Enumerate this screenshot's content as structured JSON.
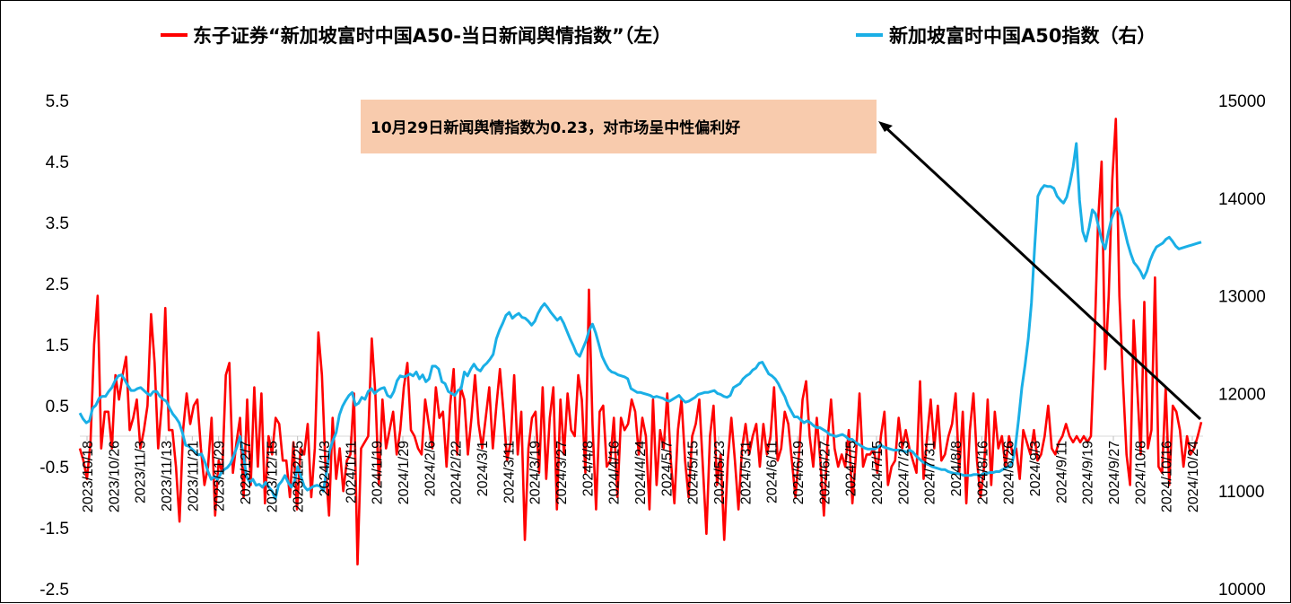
{
  "chart_data": {
    "type": "line",
    "legend": [
      {
        "label": "东子证券“新加坡富时中国A50-当日新闻舆情指数”（左）",
        "color": "#FF0000"
      },
      {
        "label": "新加坡富时中国A50指数（右）",
        "color": "#1AAFE6"
      }
    ],
    "legend_position": "top",
    "grid": false,
    "y_left": {
      "min": -2.5,
      "max": 5.5,
      "ticks": [
        "5.5",
        "4.5",
        "3.5",
        "2.5",
        "1.5",
        "0.5",
        "-0.5",
        "-1.5",
        "-2.5"
      ]
    },
    "y_right": {
      "min": 10000,
      "max": 15000,
      "ticks": [
        "15000",
        "14000",
        "13000",
        "12000",
        "11000",
        "10000"
      ]
    },
    "x_tick_labels": [
      "2023/10/18",
      "2023/10/26",
      "2023/11/3",
      "2023/11/13",
      "2023/11/21",
      "2023/11/29",
      "2023/12/7",
      "2023/12/15",
      "2023/12/25",
      "2024/1/3",
      "2024/1/11",
      "2024/1/19",
      "2024/1/29",
      "2024/2/6",
      "2024/2/22",
      "2024/3/1",
      "2024/3/11",
      "2024/3/19",
      "2024/3/27",
      "2024/4/8",
      "2024/4/16",
      "2024/4/24",
      "2024/5/7",
      "2024/5/15",
      "2024/5/23",
      "2024/5/31",
      "2024/6/11",
      "2024/6/19",
      "2024/6/27",
      "2024/7/5",
      "2024/7/15",
      "2024/7/23",
      "2024/7/31",
      "2024/8/8",
      "2024/8/16",
      "2024/8/26",
      "2024/9/3",
      "2024/9/11",
      "2024/9/19",
      "2024/9/27",
      "2024/10/8",
      "2024/10/16",
      "2024/10/24"
    ],
    "series": [
      {
        "name": "东子证券“新加坡富时中国A50-当日新闻舆情指数”（左）",
        "axis": "left",
        "color": "#FF0000",
        "values": [
          -0.2,
          -0.4,
          -0.7,
          -0.1,
          1.5,
          2.3,
          -0.2,
          0.4,
          0.4,
          -0.2,
          1.0,
          0.6,
          1.0,
          1.3,
          0.1,
          0.3,
          0.6,
          -0.2,
          0.1,
          0.5,
          2.0,
          1.2,
          -0.2,
          0.5,
          2.1,
          0.1,
          0.1,
          -0.5,
          -1.4,
          0.1,
          0.7,
          0.2,
          0.5,
          0.6,
          -0.2,
          -0.8,
          -0.5,
          0.3,
          -1.3,
          -0.4,
          -0.6,
          1.0,
          1.2,
          -0.6,
          -0.1,
          0.3,
          -1.0,
          0.6,
          -0.8,
          0.8,
          -0.5,
          0.7,
          -1.1,
          0.0,
          -0.3,
          0.3,
          0.2,
          -0.4,
          -0.4,
          -1.0,
          -0.1,
          -1.2,
          -0.2,
          -0.3,
          0.2,
          -1.0,
          -0.2,
          1.7,
          1.0,
          -0.5,
          -1.3,
          0.3,
          -0.7,
          -0.2,
          -0.9,
          -0.4,
          -0.3,
          0.7,
          -2.1,
          -0.2,
          -0.1,
          0.0,
          1.6,
          0.7,
          -0.8,
          0.6,
          -0.2,
          0.1,
          0.4,
          -0.3,
          0.1,
          0.8,
          1.2,
          0.1,
          0.0,
          -0.2,
          -0.3,
          0.6,
          0.2,
          -0.2,
          0.8,
          0.3,
          0.4,
          -0.5,
          0.5,
          1.1,
          -0.3,
          0.8,
          0.6,
          -0.3,
          0.3,
          1.0,
          0.2,
          -0.2,
          0.3,
          0.8,
          -0.2,
          0.5,
          1.1,
          0.4,
          -0.4,
          -0.1,
          1.0,
          -0.3,
          0.4,
          -1.7,
          -0.2,
          0.3,
          0.4,
          -0.6,
          0.8,
          -0.7,
          0.3,
          0.8,
          -1.2,
          0.6,
          -0.3,
          0.7,
          0.1,
          0.0,
          1.0,
          0.6,
          -0.6,
          2.4,
          0.2,
          -1.2,
          0.4,
          0.5,
          -0.5,
          -0.4,
          0.3,
          -1.0,
          0.3,
          0.1,
          0.2,
          0.6,
          0.4,
          -0.3,
          0.3,
          0.0,
          -1.2,
          0.6,
          -0.8,
          0.1,
          -0.2,
          0.7,
          -0.4,
          -1.1,
          0.1,
          0.6,
          -0.4,
          -1.0,
          0.0,
          0.2,
          0.6,
          -0.5,
          -1.6,
          0.0,
          0.5,
          -0.8,
          -0.3,
          -1.7,
          -0.4,
          0.3,
          -0.4,
          -1.2,
          -0.2,
          0.2,
          -0.3,
          0.0,
          0.2,
          -0.5,
          0.2,
          -0.3,
          0.0,
          0.8,
          -0.4,
          -0.2,
          0.4,
          0.2,
          -0.4,
          -1.0,
          -0.3,
          0.6,
          0.9,
          0.0,
          -0.5,
          0.3,
          -0.4,
          -1.3,
          -0.1,
          0.6,
          -0.2,
          -0.5,
          -0.3,
          -0.5,
          0.1,
          -1.1,
          -0.3,
          0.7,
          -0.5,
          -0.3,
          -0.3,
          -0.2,
          -0.6,
          0.0,
          0.4,
          -0.8,
          -0.5,
          -0.4,
          0.3,
          -0.2,
          0.1,
          -0.2,
          -0.4,
          -0.6,
          0.9,
          -0.7,
          0.0,
          0.6,
          -0.2,
          0.5,
          -0.4,
          -0.3,
          0.0,
          0.2,
          0.7,
          -0.6,
          0.4,
          -1.1,
          0.1,
          0.7,
          -0.4,
          -1.0,
          -0.5,
          0.6,
          -0.8,
          0.4,
          -0.2,
          0.0,
          -0.5,
          0.0,
          -0.3,
          -0.2,
          -0.7,
          0.1,
          -0.1,
          -0.3,
          0.1,
          -0.4,
          -0.3,
          0.0,
          0.5,
          -0.2,
          -0.3,
          -0.1,
          0.0,
          0.2,
          0.0,
          -0.1,
          0.0,
          -0.1,
          0.0,
          -0.1,
          0.0,
          1.5,
          3.5,
          4.5,
          1.1,
          2.3,
          4.2,
          5.2,
          2.3,
          0.9,
          -0.3,
          -0.8,
          1.9,
          0.8,
          -0.3,
          2.2,
          -0.2,
          0.1,
          2.6,
          -0.5,
          -0.6,
          0.8,
          -0.8,
          0.5,
          0.4,
          0.1,
          -0.5,
          0.0,
          -0.3,
          -0.2,
          0.0,
          0.23
        ]
      },
      {
        "name": "新加坡富时中国A50指数（右）",
        "axis": "right",
        "color": "#1AAFE6",
        "values": [
          11800,
          11740,
          11700,
          11720,
          11850,
          11880,
          11950,
          11970,
          11970,
          12020,
          12060,
          12130,
          12180,
          12190,
          12140,
          12080,
          12030,
          12030,
          12050,
          12060,
          12030,
          12000,
          11980,
          12020,
          12020,
          11970,
          11940,
          11920,
          11850,
          11790,
          11750,
          11700,
          11600,
          11470,
          11460,
          11430,
          11400,
          11370,
          11380,
          11300,
          11200,
          11120,
          11150,
          11120,
          11180,
          11220,
          11240,
          11280,
          11360,
          11450,
          11560,
          11380,
          11150,
          11090,
          11120,
          11060,
          11070,
          11040,
          11090,
          11040,
          11000,
          10920,
          11060,
          11100,
          11160,
          11090,
          11040,
          11100,
          11250,
          11150,
          11050,
          11010,
          11030,
          11050,
          11060,
          11050,
          11000,
          11200,
          11420,
          11520,
          11600,
          11780,
          11870,
          11930,
          11980,
          12010,
          11880,
          11900,
          11960,
          11940,
          12020,
          12050,
          12000,
          12030,
          12050,
          12060,
          11980,
          11960,
          12020,
          12130,
          12180,
          12170,
          12180,
          12200,
          12180,
          12220,
          12150,
          12190,
          12120,
          12150,
          12280,
          12280,
          12250,
          12120,
          12100,
          12020,
          12000,
          11980,
          12030,
          12050,
          12220,
          12180,
          12250,
          12300,
          12250,
          12230,
          12280,
          12310,
          12350,
          12400,
          12560,
          12650,
          12720,
          12800,
          12830,
          12770,
          12800,
          12820,
          12780,
          12770,
          12740,
          12700,
          12740,
          12820,
          12880,
          12920,
          12880,
          12830,
          12790,
          12750,
          12780,
          12720,
          12640,
          12560,
          12490,
          12410,
          12380,
          12460,
          12540,
          12650,
          12710,
          12620,
          12500,
          12380,
          12310,
          12250,
          12220,
          12210,
          12190,
          12180,
          12170,
          12150,
          12050,
          12030,
          12010,
          12010,
          12000,
          11990,
          11980,
          11960,
          11970,
          11960,
          11950,
          11930,
          11920,
          11940,
          11960,
          11980,
          11940,
          11910,
          11920,
          11940,
          11960,
          11990,
          12000,
          12010,
          12010,
          12020,
          12030,
          12000,
          11990,
          11970,
          11960,
          11980,
          12060,
          12080,
          12100,
          12150,
          12180,
          12200,
          12240,
          12260,
          12310,
          12320,
          12260,
          12200,
          12180,
          12150,
          12100,
          12030,
          11970,
          11880,
          11820,
          11760,
          11760,
          11730,
          11700,
          11720,
          11700,
          11670,
          11650,
          11650,
          11630,
          11610,
          11580,
          11570,
          11560,
          11570,
          11580,
          11560,
          11530,
          11530,
          11500,
          11480,
          11460,
          11440,
          11430,
          11430,
          11430,
          11450,
          11470,
          11450,
          11440,
          11430,
          11420,
          11420,
          11420,
          11410,
          11400,
          11420,
          11400,
          11360,
          11330,
          11300,
          11280,
          11270,
          11250,
          11240,
          11230,
          11220,
          11220,
          11200,
          11190,
          11180,
          11180,
          11170,
          11160,
          11160,
          11160,
          11170,
          11170,
          11160,
          11180,
          11180,
          11190,
          11190,
          11200,
          11200,
          11220,
          11240,
          11250,
          11290,
          11460,
          11740,
          12060,
          12290,
          12560,
          12930,
          13500,
          14020,
          14090,
          14130,
          14120,
          14120,
          14100,
          14020,
          13980,
          13950,
          14010,
          14150,
          14320,
          14560,
          13980,
          13660,
          13560,
          13700,
          13880,
          13840,
          13700,
          13560,
          13480,
          13650,
          13790,
          13870,
          13900,
          13820,
          13680,
          13540,
          13430,
          13340,
          13300,
          13250,
          13180,
          13250,
          13360,
          13440,
          13500,
          13520,
          13540,
          13580,
          13600,
          13560,
          13510,
          13480,
          13490,
          13500,
          13510,
          13520,
          13530,
          13540,
          13550
        ]
      }
    ],
    "annotation": {
      "text": "10月29日新闻舆情指数为0.23，对市场呈中性偏利好",
      "box_color": "#F8CBAD"
    }
  }
}
